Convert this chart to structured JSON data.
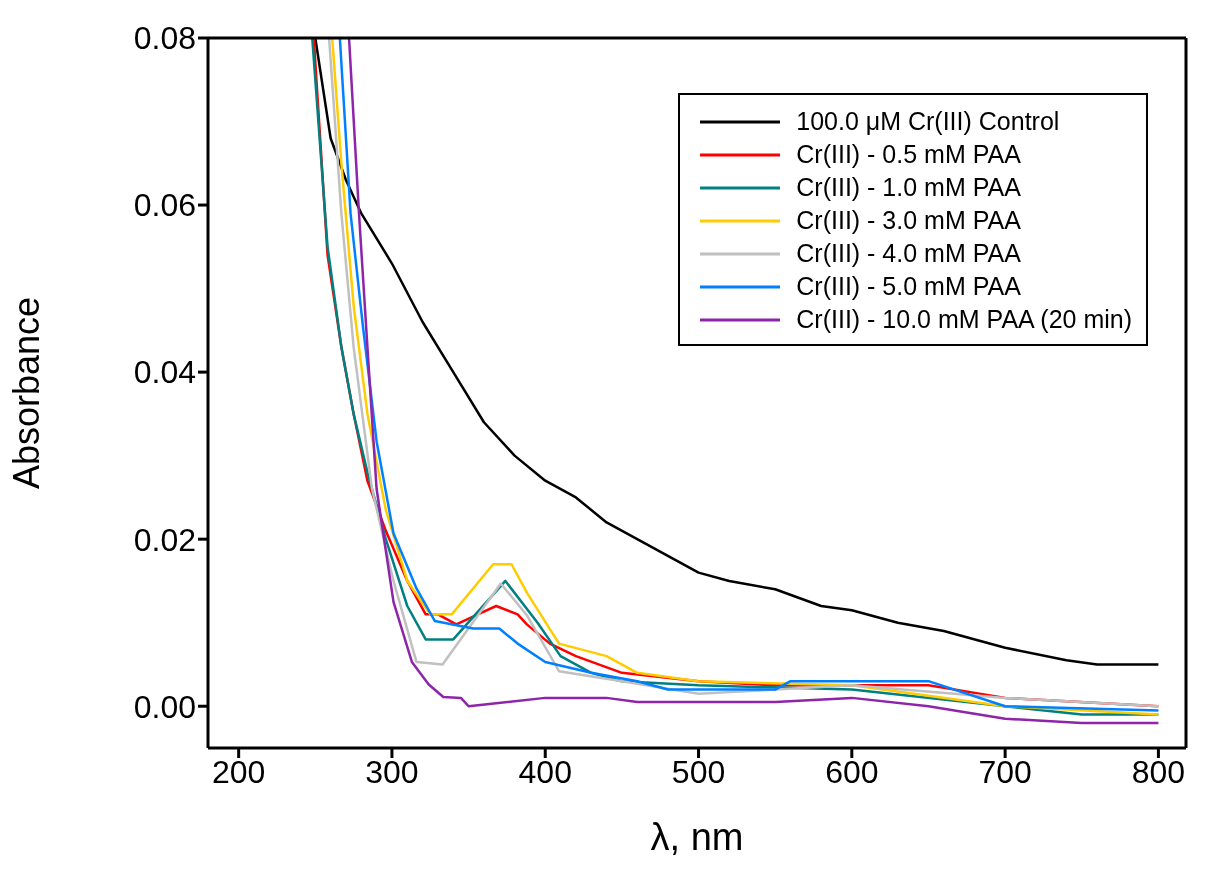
{
  "chart_data": {
    "type": "line",
    "xlabel": "λ, nm",
    "ylabel": "Absorbance",
    "xlim": [
      180,
      818
    ],
    "xticks": [
      200,
      300,
      400,
      500,
      600,
      700,
      800
    ],
    "ylim": [
      -0.005,
      0.08
    ],
    "yticks": [
      {
        "value": 0,
        "label": "0.00"
      },
      {
        "value": 0.02,
        "label": "0.02"
      },
      {
        "value": 0.04,
        "label": "0.04"
      },
      {
        "value": 0.06,
        "label": "0.06"
      },
      {
        "value": 0.08,
        "label": "0.08"
      }
    ],
    "grid": false,
    "legend": "top right",
    "marker": "none",
    "line_style": "solid",
    "series": [
      {
        "name": "100.0 μM Cr(III) Control",
        "color": "#000000",
        "x": [
          250,
          260,
          270,
          280,
          300,
          320,
          340,
          360,
          380,
          400,
          420,
          440,
          460,
          480,
          500,
          520,
          550,
          580,
          600,
          630,
          660,
          700,
          740,
          760,
          780,
          800
        ],
        "values": [
          0.08,
          0.068,
          0.063,
          0.059,
          0.053,
          0.046,
          0.04,
          0.034,
          0.03,
          0.027,
          0.025,
          0.022,
          0.02,
          0.018,
          0.016,
          0.015,
          0.014,
          0.012,
          0.0115,
          0.01,
          0.009,
          0.007,
          0.0055,
          0.005,
          0.005,
          0.005
        ]
      },
      {
        "name": "Cr(III) - 0.5 mM PAA",
        "color": "#ff0000",
        "x": [
          249,
          258,
          267,
          275,
          284,
          296,
          310,
          322,
          330,
          342,
          356,
          368,
          382,
          388,
          403,
          420,
          450,
          500,
          550,
          650,
          700,
          800
        ],
        "values": [
          0.08,
          0.054,
          0.043,
          0.035,
          0.027,
          0.021,
          0.015,
          0.011,
          0.011,
          0.0098,
          0.011,
          0.012,
          0.011,
          0.0098,
          0.0075,
          0.006,
          0.004,
          0.003,
          0.0025,
          0.0025,
          0.001,
          0
        ]
      },
      {
        "name": "Cr(III) - 1.0 mM PAA",
        "color": "#008080",
        "x": [
          248,
          258,
          267,
          275,
          284,
          296,
          310,
          322,
          340,
          374,
          395,
          410,
          430,
          450,
          500,
          600,
          700,
          750,
          800
        ],
        "values": [
          0.08,
          0.055,
          0.043,
          0.035,
          0.028,
          0.02,
          0.012,
          0.008,
          0.008,
          0.015,
          0.01,
          0.006,
          0.004,
          0.003,
          0.0025,
          0.002,
          0,
          -0.001,
          -0.001
        ]
      },
      {
        "name": "Cr(III) - 3.0 mM PAA",
        "color": "#ffcc00",
        "x": [
          261,
          267,
          275,
          284,
          296,
          310,
          325,
          339,
          366,
          378,
          388,
          409,
          440,
          460,
          500,
          600,
          700,
          800
        ],
        "values": [
          0.08,
          0.065,
          0.048,
          0.035,
          0.0235,
          0.015,
          0.011,
          0.011,
          0.017,
          0.017,
          0.0136,
          0.0075,
          0.006,
          0.004,
          0.003,
          0.0025,
          0,
          -0.001
        ]
      },
      {
        "name": "Cr(III) - 4.0 mM PAA",
        "color": "#c0c0c0",
        "x": [
          259,
          267,
          275,
          287,
          301,
          316,
          333,
          371,
          388,
          409,
          450,
          500,
          550,
          600,
          700,
          800
        ],
        "values": [
          0.08,
          0.059,
          0.043,
          0.026,
          0.015,
          0.0053,
          0.005,
          0.0147,
          0.0109,
          0.0042,
          0.003,
          0.0015,
          0.002,
          0.0025,
          0.001,
          0
        ]
      },
      {
        "name": "Cr(III) - 5.0 mM PAA",
        "color": "#0080ff",
        "x": [
          266,
          273,
          281,
          290,
          301,
          316,
          328,
          353,
          370,
          382,
          400,
          430,
          460,
          480,
          550,
          560,
          650,
          700,
          800
        ],
        "values": [
          0.08,
          0.059,
          0.0456,
          0.0317,
          0.0207,
          0.0141,
          0.0102,
          0.0093,
          0.0093,
          0.0075,
          0.0053,
          0.004,
          0.003,
          0.002,
          0.002,
          0.003,
          0.003,
          0,
          -0.0005
        ]
      },
      {
        "name": "Cr(III) - 10.0 mM PAA (20 min)",
        "color": "#8e24aa",
        "x": [
          272,
          278.5,
          284,
          290,
          301,
          313,
          324,
          333.5,
          345,
          350,
          400,
          440,
          460,
          500,
          550,
          600,
          650,
          700,
          750,
          800
        ],
        "values": [
          0.08,
          0.059,
          0.043,
          0.026,
          0.0125,
          0.0053,
          0.0026,
          0.0011,
          0.001,
          0,
          0.001,
          0.001,
          0.0005,
          0.0005,
          0.0005,
          0.001,
          0,
          -0.0015,
          -0.002,
          -0.002
        ]
      }
    ]
  }
}
